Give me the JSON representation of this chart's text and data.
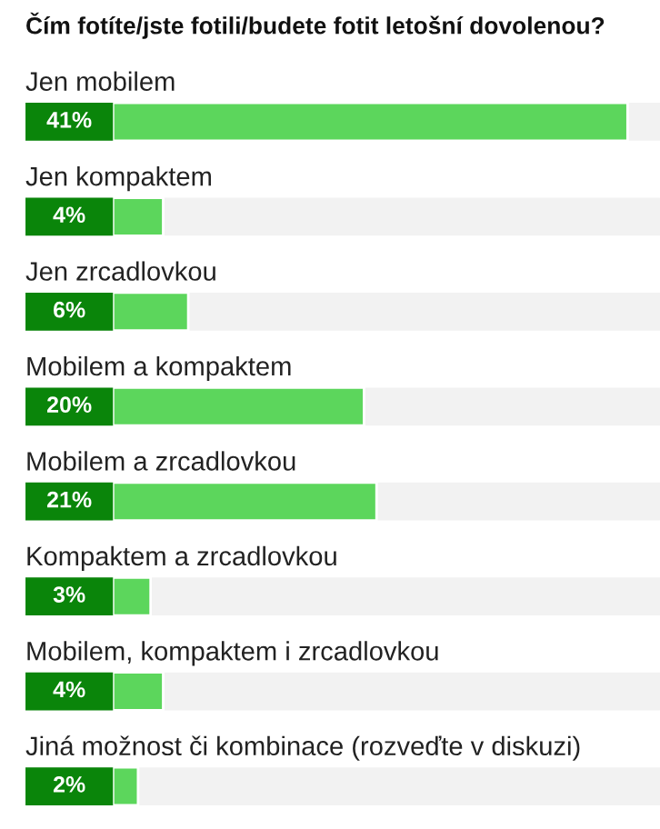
{
  "chart_data": {
    "type": "bar",
    "orientation": "horizontal",
    "title": "Čím fotíte/jste fotili/budete fotit letošní dovolenou?",
    "categories": [
      "Jen mobilem",
      "Jen kompaktem",
      "Jen zrcadlovkou",
      "Mobilem a kompaktem",
      "Mobilem a zrcadlovkou",
      "Kompaktem a zrcadlovkou",
      "Mobilem, kompaktem i zrcadlovkou",
      "Jiná možnost či kombinace (rozveďte v diskuzi)"
    ],
    "values": [
      41,
      4,
      6,
      20,
      21,
      3,
      4,
      2
    ],
    "value_labels": [
      "41%",
      "4%",
      "6%",
      "20%",
      "21%",
      "3%",
      "4%",
      "2%"
    ],
    "color": "#5cd65c"
  }
}
